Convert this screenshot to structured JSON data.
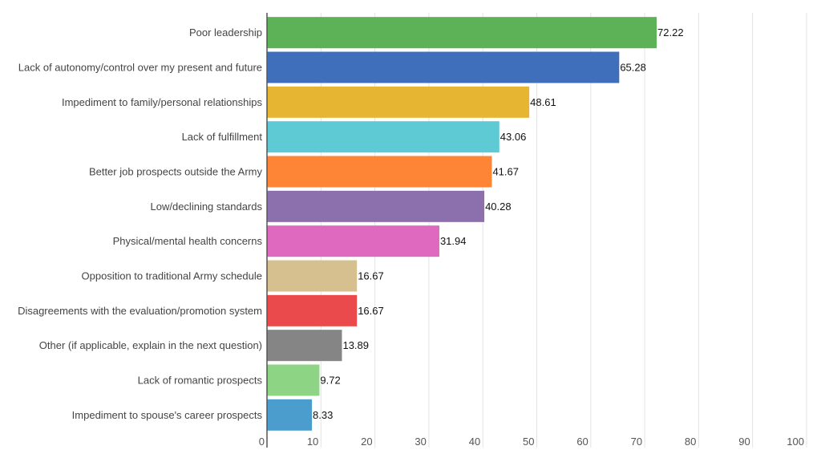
{
  "chart_data": {
    "type": "bar",
    "orientation": "horizontal",
    "title": "",
    "xlabel": "",
    "ylabel": "",
    "xlim": [
      0,
      100
    ],
    "xticks": [
      0,
      10,
      20,
      30,
      40,
      50,
      60,
      70,
      80,
      90,
      100
    ],
    "grid": true,
    "legend": "none",
    "categories": [
      "Poor leadership",
      "Lack of autonomy/control over my present and future",
      "Impediment to family/personal relationships",
      "Lack of fulfillment",
      "Better job prospects outside the Army",
      "Low/declining standards",
      "Physical/mental health concerns",
      "Opposition to traditional Army schedule",
      "Disagreements with the evaluation/promotion system",
      "Other (if applicable, explain in the next question)",
      "Lack of romantic prospects",
      "Impediment to spouse's career prospects"
    ],
    "values": [
      72.22,
      65.28,
      48.61,
      43.06,
      41.67,
      40.28,
      31.94,
      16.67,
      16.67,
      13.89,
      9.72,
      8.33
    ],
    "value_labels": [
      "72.22",
      "65.28",
      "48.61",
      "43.06",
      "41.67",
      "40.28",
      "31.94",
      "16.67",
      "16.67",
      "13.89",
      "9.72",
      "8.33"
    ],
    "colors": [
      "#5db257",
      "#3f6fba",
      "#e6b531",
      "#5ecad4",
      "#fd8535",
      "#8c6fad",
      "#df69bf",
      "#d6c08f",
      "#ea4a4b",
      "#858585",
      "#8dd584",
      "#4a9dcc"
    ]
  }
}
